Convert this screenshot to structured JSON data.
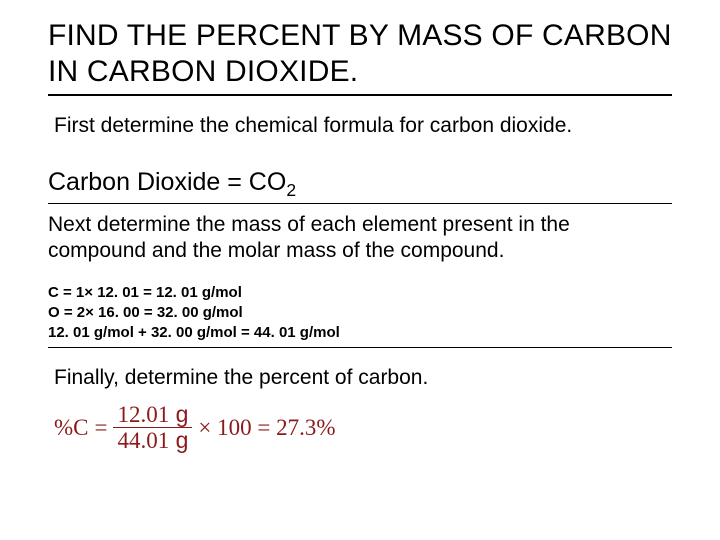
{
  "title": "FIND THE PERCENT BY MASS OF CARBON IN CARBON DIOXIDE.",
  "step1": "First determine the chemical formula for carbon dioxide.",
  "formula": {
    "label": "Carbon Dioxide = CO",
    "subscript": "2"
  },
  "step2": "Next determine the mass of each element present in the compound and the molar mass of the compound.",
  "masses": {
    "line1": "C = 1× 12. 01 = 12. 01 g/mol",
    "line2": "O = 2× 16. 00 = 32. 00 g/mol",
    "line3": "12. 01 g/mol + 32. 00 g/mol = 44. 01 g/mol"
  },
  "step3": "Finally, determine the percent of carbon.",
  "equation": {
    "lhs": "%C",
    "eq": " = ",
    "numerator_val": "12.01",
    "numerator_unit": " g",
    "denominator_val": "44.01",
    "denominator_unit": " g",
    "rest": " × 100 = 27.3%"
  },
  "colors": {
    "text": "#000000",
    "accent": "#8b1a1a",
    "bg": "#ffffff"
  }
}
